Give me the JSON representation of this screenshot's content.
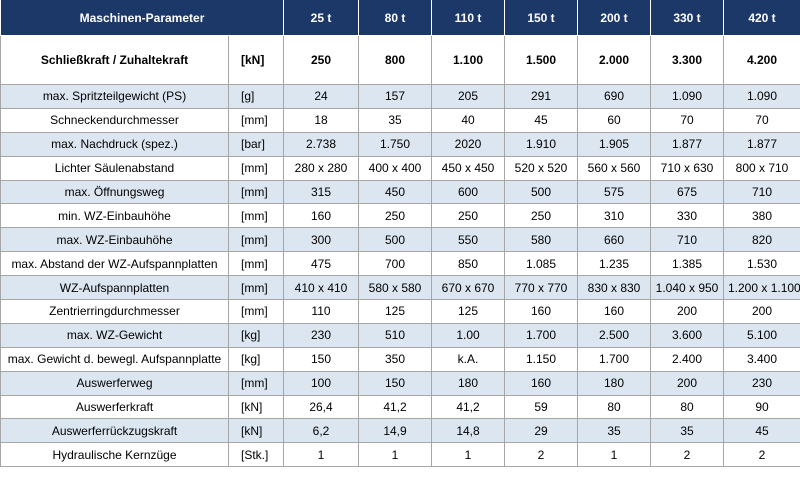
{
  "header": {
    "title": "Maschinen-Parameter",
    "columns": [
      "25 t",
      "80 t",
      "110 t",
      "150 t",
      "200 t",
      "330 t",
      "420 t"
    ]
  },
  "table": {
    "rows": [
      [
        "Schließkraft / Zuhaltekraft",
        "[kN]",
        "250",
        "800",
        "1.100",
        "1.500",
        "2.000",
        "3.300",
        "4.200"
      ],
      [
        "max. Spritzteilgewicht (PS)",
        "[g]",
        "24",
        "157",
        "205",
        "291",
        "690",
        "1.090",
        "1.090"
      ],
      [
        "Schneckendurchmesser",
        "[mm]",
        "18",
        "35",
        "40",
        "45",
        "60",
        "70",
        "70"
      ],
      [
        "max. Nachdruck (spez.)",
        "[bar]",
        "2.738",
        "1.750",
        "2020",
        "1.910",
        "1.905",
        "1.877",
        "1.877"
      ],
      [
        "Lichter Säulenabstand",
        "[mm]",
        "280 x 280",
        "400 x 400",
        "450 x 450",
        "520 x 520",
        "560 x 560",
        "710 x 630",
        "800 x 710"
      ],
      [
        "max. Öffnungsweg",
        "[mm]",
        "315",
        "450",
        "600",
        "500",
        "575",
        "675",
        "710"
      ],
      [
        "min. WZ-Einbauhöhe",
        "[mm]",
        "160",
        "250",
        "250",
        "250",
        "310",
        "330",
        "380"
      ],
      [
        "max. WZ-Einbauhöhe",
        "[mm]",
        "300",
        "500",
        "550",
        "580",
        "660",
        "710",
        "820"
      ],
      [
        "max. Abstand der WZ-Aufspannplatten",
        "[mm]",
        "475",
        "700",
        "850",
        "1.085",
        "1.235",
        "1.385",
        "1.530"
      ],
      [
        "WZ-Aufspannplatten",
        "[mm]",
        "410 x 410",
        "580 x 580",
        "670 x 670",
        "770 x 770",
        "830 x 830",
        "1.040 x 950",
        "1.200 x 1.100"
      ],
      [
        "Zentrierringdurchmesser",
        "[mm]",
        "110",
        "125",
        "125",
        "160",
        "160",
        "200",
        "200"
      ],
      [
        "max. WZ-Gewicht",
        "[kg]",
        "230",
        "510",
        "1.00",
        "1.700",
        "2.500",
        "3.600",
        "5.100"
      ],
      [
        "max. Gewicht d. bewegl. Aufspannplatte",
        "[kg]",
        "150",
        "350",
        "k.A.",
        "1.150",
        "1.700",
        "2.400",
        "3.400"
      ],
      [
        "Auswerferweg",
        "[mm]",
        "100",
        "150",
        "180",
        "160",
        "180",
        "200",
        "230"
      ],
      [
        "Auswerferkraft",
        "[kN]",
        "26,4",
        "41,2",
        "41,2",
        "59",
        "80",
        "80",
        "90"
      ],
      [
        "Auswerferrückzugskraft",
        "[kN]",
        "6,2",
        "14,9",
        "14,8",
        "29",
        "35",
        "35",
        "45"
      ],
      [
        "Hydraulische Kernzüge",
        "[Stk.]",
        "1",
        "1",
        "1",
        "2",
        "1",
        "2",
        "2"
      ]
    ]
  }
}
